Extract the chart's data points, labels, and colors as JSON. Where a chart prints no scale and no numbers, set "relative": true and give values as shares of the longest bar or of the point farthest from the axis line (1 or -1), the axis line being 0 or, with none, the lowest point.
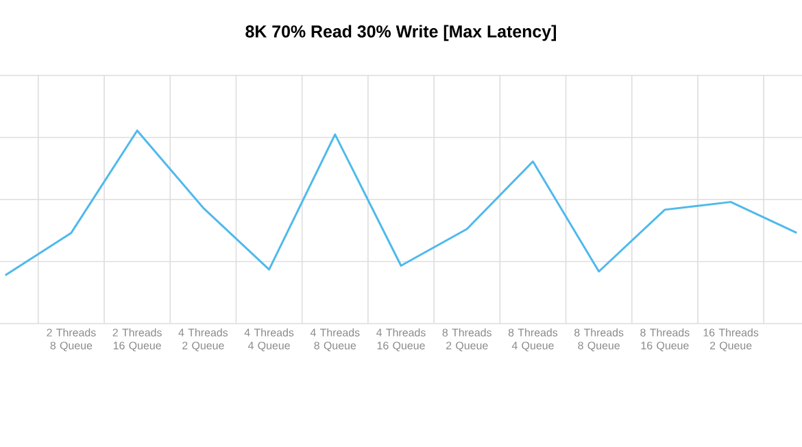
{
  "chart_data": {
    "type": "line",
    "title": "8K 70% Read 30% Write [Max Latency]",
    "categories": [
      null,
      "2 Threads 8 Queue",
      "2 Threads 16 Queue",
      "4 Threads 2 Queue",
      "4 Threads 4 Queue",
      "4 Threads 8 Queue",
      "4 Threads 16 Queue",
      "8 Threads 2 Queue",
      "8 Threads 4 Queue",
      "8 Threads 8 Queue",
      "8 Threads 16 Queue",
      "16 Threads 2 Queue",
      null
    ],
    "series": [
      {
        "color": "#4fb9ec",
        "values": [
          0.25,
          0.47,
          1,
          0.6,
          0.28,
          0.98,
          0.3,
          0.49,
          0.84,
          0.27,
          0.59,
          0.63,
          0.47
        ]
      }
    ],
    "relative": true,
    "grid": true,
    "marker": "none",
    "line_style": "solid"
  }
}
